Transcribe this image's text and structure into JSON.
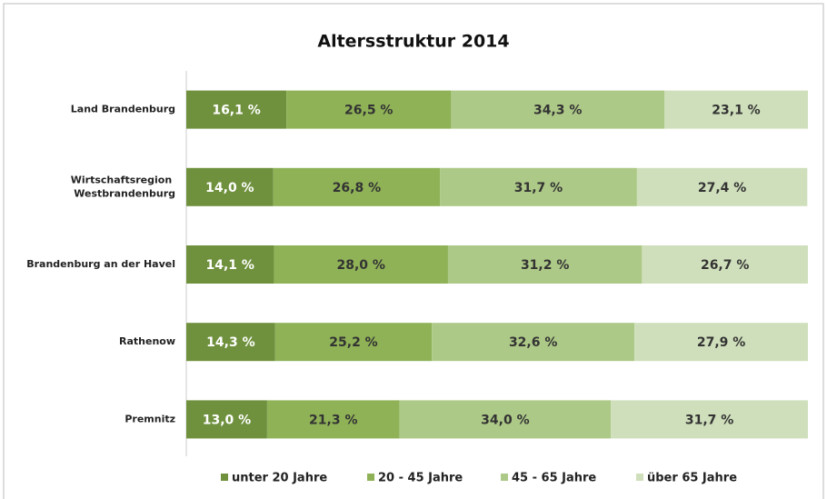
{
  "chart_data": {
    "type": "bar",
    "orientation": "horizontal",
    "stacked": true,
    "title": "Altersstruktur 2014",
    "categories": [
      "Land Brandenburg",
      "Wirtschaftsregion Westbrandenburg",
      "Brandenburg an der Havel",
      "Rathenow",
      "Premnitz"
    ],
    "xlim": [
      0,
      100
    ],
    "legend": "bottom",
    "series": [
      {
        "name": "unter 20 Jahre",
        "color": "#6f913d",
        "values": [
          16.1,
          14.0,
          14.1,
          14.3,
          13.0
        ],
        "value_labels": [
          "16,1 %",
          "14,0 %",
          "14,1 %",
          "14,3 %",
          "13,0 %"
        ]
      },
      {
        "name": "20 - 45 Jahre",
        "color": "#8fb257",
        "values": [
          26.5,
          26.8,
          28.0,
          25.2,
          21.3
        ],
        "value_labels": [
          "26,5 %",
          "26,8 %",
          "28,0 %",
          "25,2 %",
          "21,3 %"
        ]
      },
      {
        "name": "45 - 65 Jahre",
        "color": "#adc987",
        "values": [
          34.3,
          31.7,
          31.2,
          32.6,
          34.0
        ],
        "value_labels": [
          "34,3 %",
          "31,7 %",
          "31,2 %",
          "32,6 %",
          "34,0 %"
        ]
      },
      {
        "name": "über 65 Jahre",
        "color": "#cfdfbb",
        "values": [
          23.1,
          27.4,
          26.7,
          27.9,
          31.7
        ],
        "value_labels": [
          "23,1 %",
          "27,4 %",
          "26,7 %",
          "27,9 %",
          "31,7 %"
        ]
      }
    ]
  }
}
